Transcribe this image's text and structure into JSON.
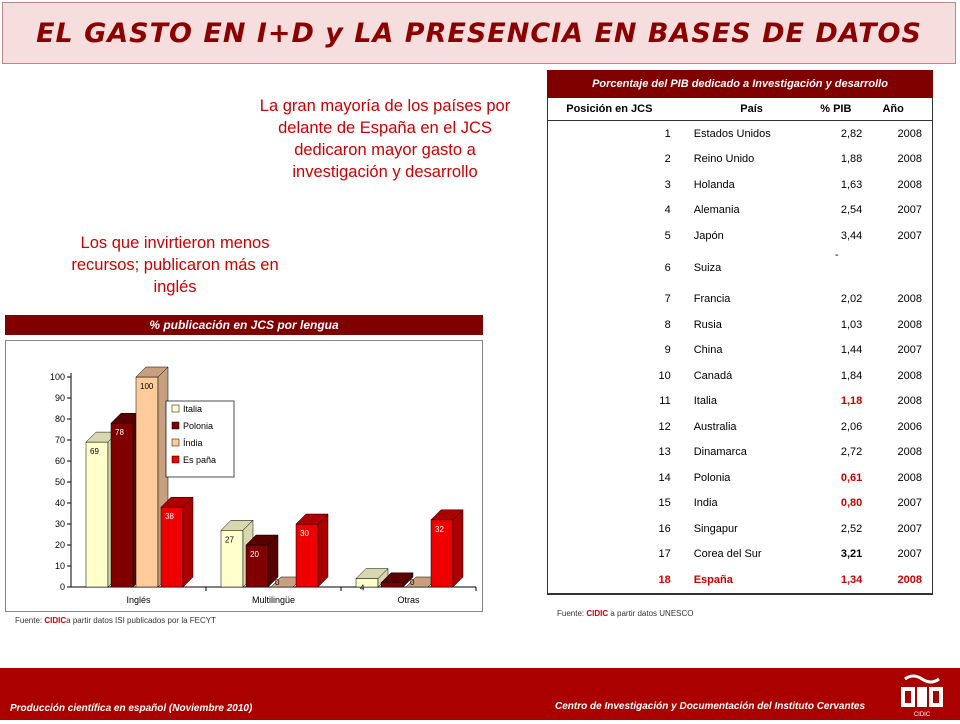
{
  "title": "EL GASTO EN I+D y LA PRESENCIA EN BASES DE DATOS",
  "note1": "La gran mayoría de los países por delante de España en el JCS dedicaron mayor gasto a investigación y desarrollo",
  "note2": "Los que invirtieron menos recursos; publicaron más en inglés",
  "chart_header": "% publicación en JCS por lengua",
  "chart_source": {
    "prefix": "Fuente: ",
    "org": "CIDIC",
    "suffix": "a partir datos ISI publicados por la FECYT"
  },
  "chart_data": {
    "type": "bar",
    "categories": [
      "Inglés",
      "Multilingüe",
      "Otras"
    ],
    "series": [
      {
        "name": "Italia",
        "values": [
          69,
          27,
          4
        ],
        "color": "#ffffcc",
        "top": "#d8d8b0"
      },
      {
        "name": "Polonia",
        "values": [
          78,
          20,
          2
        ],
        "color": "#800000",
        "top": "#5a0000"
      },
      {
        "name": "Índia",
        "values": [
          100,
          0,
          0
        ],
        "color": "#ffcc99",
        "top": "#c8a080"
      },
      {
        "name": "Es paña",
        "values": [
          38,
          30,
          32
        ],
        "color": "#ee0000",
        "top": "#aa0000"
      }
    ],
    "ylim": [
      0,
      100
    ],
    "yticks": [
      "0",
      "10",
      "20",
      "30",
      "40",
      "50",
      "60",
      "70",
      "80",
      "90",
      "100"
    ],
    "title": "",
    "xlabel": "",
    "ylabel": ""
  },
  "table": {
    "caption": "Porcentaje del PIB dedicado a Investigación y desarrollo",
    "headers": [
      "Posición en JCS",
      "País",
      "% PIB",
      "Año"
    ],
    "rows": [
      [
        "1",
        "Estados Unidos",
        "2,82",
        "2008"
      ],
      [
        "2",
        "Reino Unido",
        "1,88",
        "2008"
      ],
      [
        "3",
        "Holanda",
        "1,63",
        "2008"
      ],
      [
        "4",
        "Alemania",
        "2,54",
        "2007"
      ],
      [
        "5",
        "Japón",
        "3,44",
        "2007"
      ],
      [
        "6",
        "Suiza",
        "-",
        ""
      ],
      [
        "7",
        "Francia",
        "2,02",
        "2008"
      ],
      [
        "8",
        "Rusia",
        "1,03",
        "2008"
      ],
      [
        "9",
        "China",
        "1,44",
        "2007"
      ],
      [
        "10",
        "Canadá",
        "1,84",
        "2008"
      ],
      [
        "11",
        "Italia",
        "1,18",
        "2008"
      ],
      [
        "12",
        "Australia",
        "2,06",
        "2006"
      ],
      [
        "13",
        "Dinamarca",
        "2,72",
        "2008"
      ],
      [
        "14",
        "Polonia",
        "0,61",
        "2008"
      ],
      [
        "15",
        "India",
        "0,80",
        "2007"
      ],
      [
        "16",
        "Singapur",
        "2,52",
        "2007"
      ],
      [
        "17",
        "Corea del Sur",
        "3,21",
        "2007"
      ],
      [
        "18",
        "España",
        "1,34",
        "2008"
      ]
    ]
  },
  "table_source": {
    "prefix": "Fuente: ",
    "org": "CIDIC",
    "suffix": " a partir datos UNESCO"
  },
  "footer": {
    "left": "Producción científica en español (Noviembre 2010)",
    "right": "Centro de Investigación y Documentación del Instituto Cervantes",
    "logo_text": "CIDIC"
  }
}
